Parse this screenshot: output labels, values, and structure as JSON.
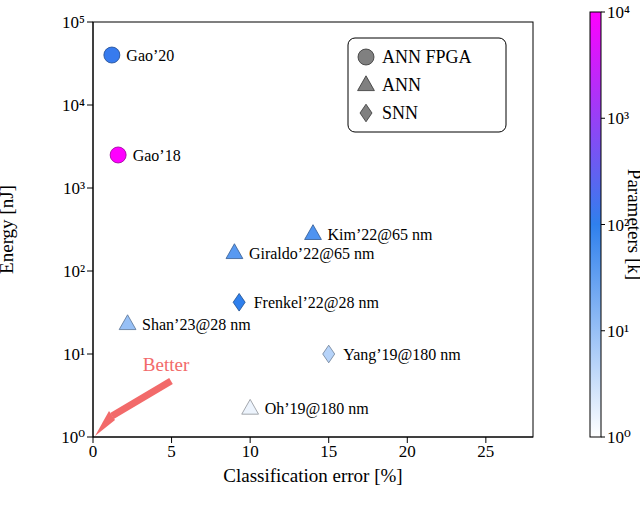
{
  "chart_data": {
    "type": "scatter",
    "x_label": "Classification error [%]",
    "y_label": "Energy [nJ]",
    "xlim": [
      0,
      28
    ],
    "xticks": [
      0,
      5,
      10,
      15,
      20,
      25
    ],
    "ylim": [
      1,
      100000
    ],
    "yticks": [
      {
        "value": 1,
        "label": "10⁰"
      },
      {
        "value": 10,
        "label": "10¹"
      },
      {
        "value": 100,
        "label": "10²"
      },
      {
        "value": 1000,
        "label": "10³"
      },
      {
        "value": 10000,
        "label": "10⁴"
      },
      {
        "value": 100000,
        "label": "10⁵"
      }
    ],
    "log": "y",
    "legend": "upper right",
    "annotations": [
      "Better"
    ],
    "series": [
      {
        "name": "ANN FPGA",
        "marker": "circle",
        "color": "#808080",
        "x": [
          1.2,
          1.6
        ],
        "values": [
          40000,
          2500
        ],
        "parameters": [
          120,
          10000
        ],
        "point_labels": [
          "Gao’20",
          "Gao’18"
        ]
      },
      {
        "name": "ANN",
        "marker": "triangle",
        "color": "#808080",
        "x": [
          14,
          9,
          2.2,
          10
        ],
        "values": [
          280,
          165,
          23,
          2.2
        ],
        "parameters": [
          50,
          40,
          10,
          1.5
        ],
        "point_labels": [
          "Kim’22@65 nm",
          "Giraldo’22@65 nm",
          "Shan’23@28 nm",
          "Oh’19@180 nm"
        ]
      },
      {
        "name": "SNN",
        "marker": "diamond",
        "color": "#808080",
        "x": [
          9.3,
          15
        ],
        "values": [
          42,
          10
        ],
        "parameters": [
          100,
          5
        ],
        "point_labels": [
          "Frenkel’22@28 nm",
          "Yang’19@180 nm"
        ]
      }
    ],
    "colorbar": {
      "label": "Parameters [k]",
      "lim": [
        1,
        10000
      ],
      "ticks": [
        {
          "value": 1,
          "label": "10⁰"
        },
        {
          "value": 10,
          "label": "10¹"
        },
        {
          "value": 100,
          "label": "10²"
        },
        {
          "value": 1000,
          "label": "10³"
        },
        {
          "value": 10000,
          "label": "10⁴"
        }
      ],
      "colors": [
        "#ffffff",
        "#2f80ed",
        "#ff00ff"
      ]
    }
  }
}
